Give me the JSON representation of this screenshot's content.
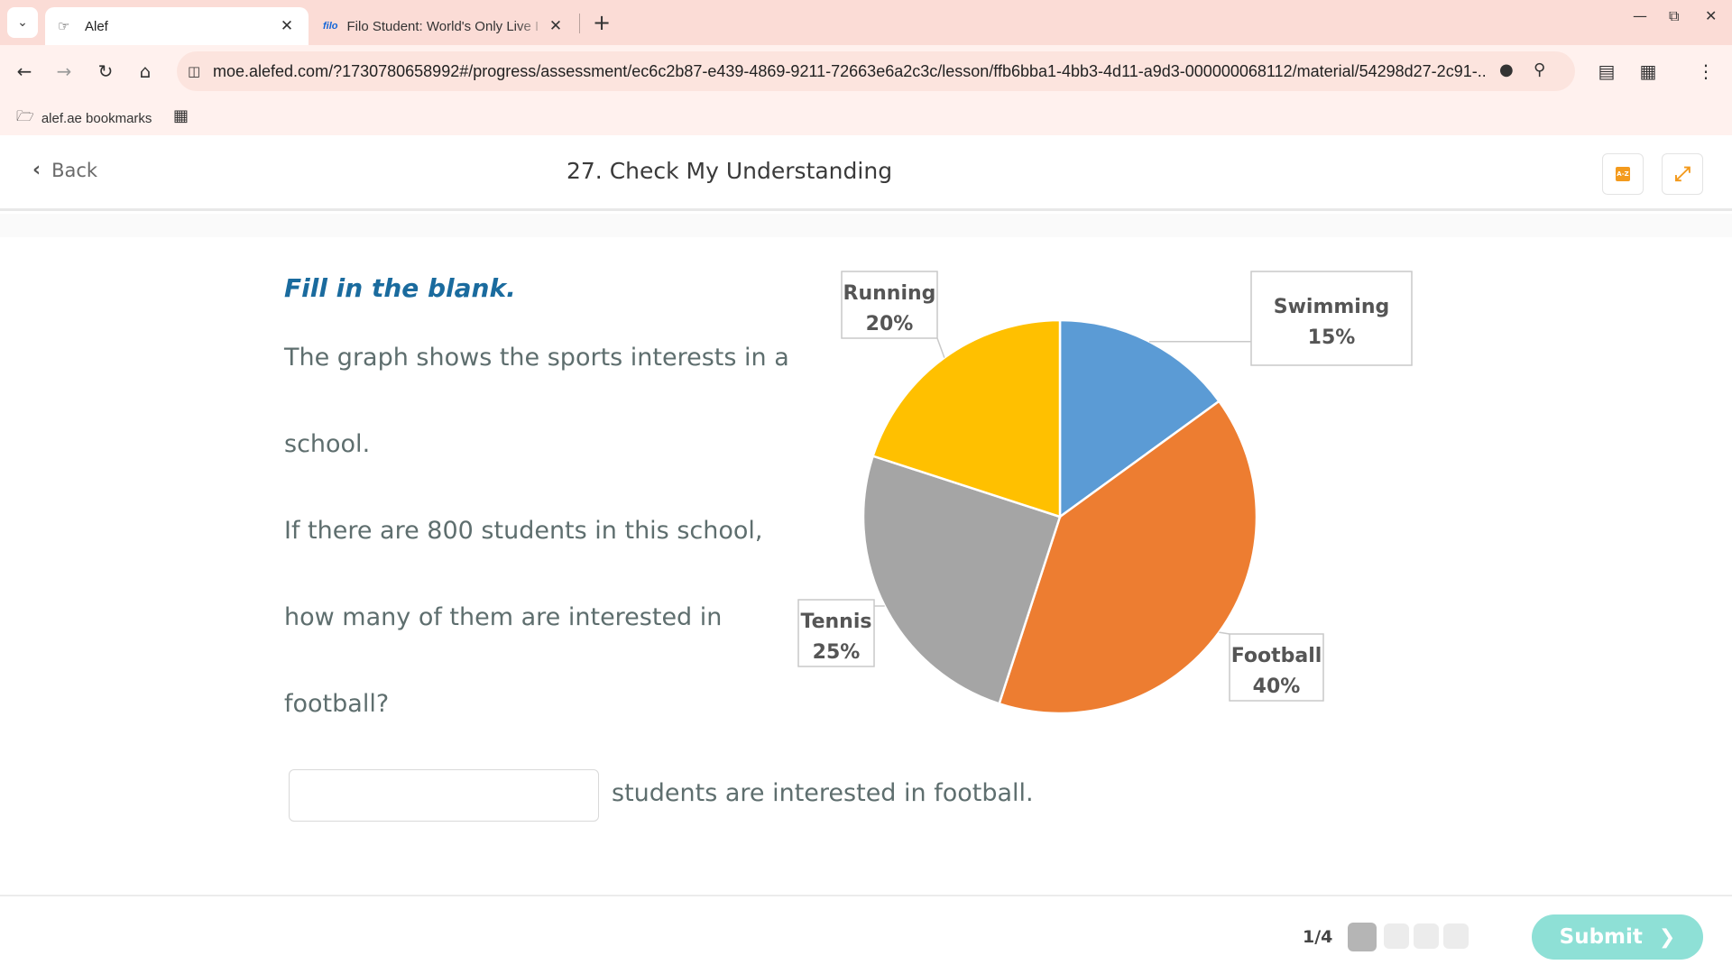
{
  "browser": {
    "tabs": [
      {
        "title": "Alef",
        "active": true
      },
      {
        "title": "Filo Student: World's Only Live I",
        "active": false,
        "favicon_text": "filo"
      }
    ],
    "url": "moe.alefed.com/?1730780658992#/progress/assessment/ec6c2b87-e439-4869-9211-72663e6a2c3c/lesson/ffb6bba1-4bb3-4d11-a9d3-000000068112/material/54298d27-2c91-...",
    "bookmarks": [
      {
        "label": "alef.ae bookmarks"
      }
    ]
  },
  "header": {
    "back_label": "Back",
    "title": "27. Check My Understanding",
    "glossary_icon_text": "A-Z"
  },
  "question": {
    "instruction": "Fill in the blank.",
    "lines": [
      "The graph shows the sports interests in a",
      "school.",
      "If there are 800 students in this school,",
      "how many of them are interested in",
      "football?"
    ],
    "answer_value": "",
    "answer_suffix": "students are interested in football."
  },
  "chart_data": {
    "type": "pie",
    "slices": [
      {
        "label": "Swimming",
        "value": 15,
        "value_label": "15%",
        "color": "#5b9bd5"
      },
      {
        "label": "Football",
        "value": 40,
        "value_label": "40%",
        "color": "#ed7d31"
      },
      {
        "label": "Tennis",
        "value": 25,
        "value_label": "25%",
        "color": "#a5a5a5"
      },
      {
        "label": "Running",
        "value": 20,
        "value_label": "20%",
        "color": "#ffc000"
      }
    ]
  },
  "footer": {
    "progress": "1/4",
    "progress_current": 1,
    "progress_total": 4,
    "submit_label": "Submit"
  },
  "colors": {
    "instruction": "#1a6b9e",
    "accent_orange": "#f39a1d",
    "submit": "#8ee0d6"
  }
}
